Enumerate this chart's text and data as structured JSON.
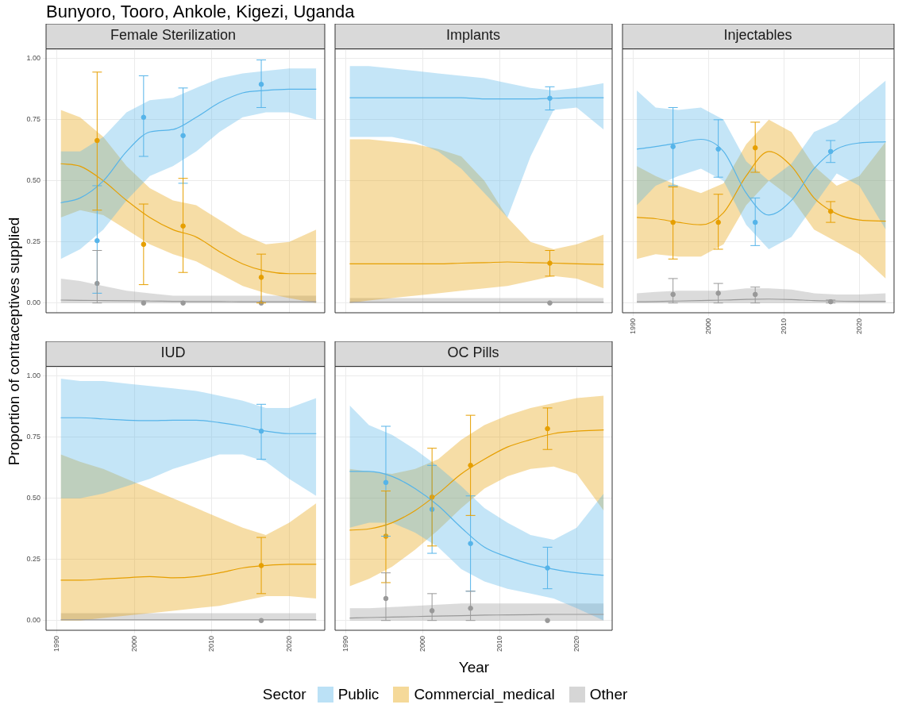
{
  "chart_data": [
    {
      "type": "line",
      "title": "Female Sterilization",
      "annotations": [
        "Bunyoro, Tooro, Ankole, Kigezi, Uganda"
      ],
      "ylabel": "Proportion of contraceptives supplied",
      "legend": "bottom",
      "legend_title": "Sector",
      "grid": true,
      "tick_labels": "y",
      "xlim": [
        1988.6,
        2024.6
      ],
      "xticks": [
        1990,
        2000,
        2010,
        2020
      ],
      "ylim": [
        -0.04,
        1.04
      ],
      "yticks": [
        {
          "value": 0,
          "label": "0.00"
        },
        {
          "value": 0.25,
          "label": "0.25"
        },
        {
          "value": 0.5,
          "label": "0.50"
        },
        {
          "value": 0.75,
          "label": "0.75"
        },
        {
          "value": 1,
          "label": "1.00"
        }
      ],
      "x": [
        1990.5,
        1993,
        1996,
        1999,
        2002,
        2005,
        2008,
        2011,
        2014,
        2017,
        2020,
        2023.5
      ],
      "series": [
        {
          "name": "Public",
          "color": "#56b4e9",
          "values": [
            0.41,
            0.43,
            0.5,
            0.62,
            0.7,
            0.71,
            0.76,
            0.82,
            0.86,
            0.87,
            0.875,
            0.875
          ],
          "lower": [
            0.18,
            0.22,
            0.3,
            0.42,
            0.52,
            0.56,
            0.62,
            0.7,
            0.76,
            0.78,
            0.78,
            0.75
          ],
          "upper": [
            0.62,
            0.62,
            0.68,
            0.78,
            0.83,
            0.84,
            0.88,
            0.92,
            0.94,
            0.95,
            0.96,
            0.96
          ]
        },
        {
          "name": "Commercial_medical",
          "color": "#e69f00",
          "values": [
            0.57,
            0.56,
            0.5,
            0.42,
            0.35,
            0.3,
            0.27,
            0.21,
            0.16,
            0.13,
            0.12,
            0.12
          ],
          "lower": [
            0.35,
            0.38,
            0.36,
            0.3,
            0.24,
            0.2,
            0.17,
            0.12,
            0.07,
            0.04,
            0.02,
            0
          ],
          "upper": [
            0.79,
            0.76,
            0.68,
            0.56,
            0.47,
            0.42,
            0.4,
            0.34,
            0.28,
            0.24,
            0.25,
            0.3
          ]
        },
        {
          "name": "Other",
          "color": "#999999",
          "values": [
            0.012,
            0.011,
            0.01,
            0.009,
            0.008,
            0.007,
            0.006,
            0.006,
            0.005,
            0.005,
            0.005,
            0.005
          ],
          "lower": [
            0,
            0,
            0,
            0,
            0,
            0,
            0,
            0,
            0,
            0,
            0,
            0
          ],
          "upper": [
            0.1,
            0.09,
            0.07,
            0.05,
            0.04,
            0.03,
            0.03,
            0.03,
            0.03,
            0.03,
            0.03,
            0.03
          ]
        },
        {
          "type": "scatter",
          "color": "#56b4e9",
          "x": [
            1995.2,
            2001.2,
            2006.3,
            2016.4
          ],
          "values": [
            0.255,
            0.76,
            0.685,
            0.895
          ],
          "errors": [
            [
              0.04,
              0.48
            ],
            [
              0.6,
              0.93
            ],
            [
              0.49,
              0.88
            ],
            [
              0.8,
              0.995
            ]
          ]
        },
        {
          "type": "scatter",
          "color": "#e69f00",
          "x": [
            1995.2,
            2001.2,
            2006.3,
            2016.4
          ],
          "values": [
            0.665,
            0.24,
            0.315,
            0.105
          ],
          "errors": [
            [
              0.38,
              0.945
            ],
            [
              0.075,
              0.405
            ],
            [
              0.125,
              0.51
            ],
            [
              0,
              0.2
            ]
          ]
        },
        {
          "type": "scatter",
          "color": "#999999",
          "x": [
            1995.2,
            2001.2,
            2006.3,
            2016.4
          ],
          "values": [
            0.08,
            0,
            0,
            0
          ],
          "errors": [
            [
              0,
              0.215
            ],
            null,
            null,
            null
          ]
        }
      ]
    },
    {
      "type": "line",
      "title": "Implants",
      "grid": true,
      "tick_labels": false,
      "xlim": [
        1988.6,
        2024.6
      ],
      "xticks": [
        1990,
        2000,
        2010,
        2020
      ],
      "ylim": [
        -0.04,
        1.04
      ],
      "yticks": [
        0,
        0.25,
        0.5,
        0.75,
        1
      ],
      "x": [
        1990.5,
        1993,
        1996,
        1999,
        2002,
        2005,
        2008,
        2011,
        2014,
        2017,
        2020,
        2023.5
      ],
      "series": [
        {
          "color": "#56b4e9",
          "values": [
            0.84,
            0.84,
            0.84,
            0.84,
            0.84,
            0.84,
            0.835,
            0.835,
            0.835,
            0.838,
            0.84,
            0.84
          ],
          "lower": [
            0.68,
            0.68,
            0.68,
            0.66,
            0.62,
            0.55,
            0.45,
            0.35,
            0.6,
            0.79,
            0.8,
            0.71
          ],
          "upper": [
            0.97,
            0.97,
            0.96,
            0.95,
            0.94,
            0.93,
            0.92,
            0.9,
            0.88,
            0.87,
            0.88,
            0.9
          ]
        },
        {
          "color": "#e69f00",
          "values": [
            0.16,
            0.16,
            0.16,
            0.16,
            0.16,
            0.163,
            0.165,
            0.168,
            0.165,
            0.163,
            0.16,
            0.158
          ],
          "lower": [
            0,
            0.01,
            0.02,
            0.03,
            0.04,
            0.05,
            0.06,
            0.07,
            0.09,
            0.11,
            0.1,
            0.06
          ],
          "upper": [
            0.67,
            0.67,
            0.66,
            0.65,
            0.63,
            0.6,
            0.5,
            0.35,
            0.25,
            0.22,
            0.24,
            0.28
          ]
        },
        {
          "color": "#999999",
          "values": [
            0.003,
            0.003,
            0.003,
            0.003,
            0.003,
            0.003,
            0.003,
            0.003,
            0.003,
            0.003,
            0.003,
            0.003
          ],
          "lower": [
            0,
            0,
            0,
            0,
            0,
            0,
            0,
            0,
            0,
            0,
            0,
            0
          ],
          "upper": [
            0.02,
            0.02,
            0.02,
            0.02,
            0.02,
            0.02,
            0.02,
            0.02,
            0.02,
            0.02,
            0.02,
            0.02
          ]
        },
        {
          "type": "scatter",
          "color": "#56b4e9",
          "x": [
            2016.5
          ],
          "values": [
            0.838
          ],
          "errors": [
            [
              0.79,
              0.885
            ]
          ]
        },
        {
          "type": "scatter",
          "color": "#e69f00",
          "x": [
            2016.5
          ],
          "values": [
            0.163
          ],
          "errors": [
            [
              0.11,
              0.215
            ]
          ]
        },
        {
          "type": "scatter",
          "color": "#999999",
          "x": [
            2016.5
          ],
          "values": [
            0
          ],
          "errors": [
            null
          ]
        }
      ]
    },
    {
      "type": "line",
      "title": "Injectables",
      "grid": true,
      "tick_labels": "x",
      "xlim": [
        1988.6,
        2024.6
      ],
      "xticks": [
        1990,
        2000,
        2010,
        2020
      ],
      "ylim": [
        -0.04,
        1.04
      ],
      "yticks": [
        0,
        0.25,
        0.5,
        0.75,
        1
      ],
      "x": [
        1990.5,
        1993,
        1996,
        1999,
        2002,
        2005,
        2008,
        2011,
        2014,
        2017,
        2020,
        2023.5
      ],
      "series": [
        {
          "color": "#56b4e9",
          "values": [
            0.63,
            0.64,
            0.655,
            0.67,
            0.62,
            0.45,
            0.36,
            0.42,
            0.55,
            0.63,
            0.655,
            0.66
          ],
          "lower": [
            0.4,
            0.48,
            0.52,
            0.55,
            0.5,
            0.32,
            0.22,
            0.27,
            0.4,
            0.53,
            0.48,
            0.3
          ],
          "upper": [
            0.87,
            0.8,
            0.79,
            0.8,
            0.75,
            0.58,
            0.5,
            0.57,
            0.7,
            0.74,
            0.82,
            0.91
          ]
        },
        {
          "color": "#e69f00",
          "values": [
            0.35,
            0.345,
            0.33,
            0.32,
            0.37,
            0.52,
            0.62,
            0.56,
            0.43,
            0.365,
            0.34,
            0.335
          ],
          "lower": [
            0.18,
            0.2,
            0.19,
            0.19,
            0.24,
            0.4,
            0.5,
            0.43,
            0.3,
            0.25,
            0.2,
            0.1
          ],
          "upper": [
            0.56,
            0.52,
            0.48,
            0.45,
            0.49,
            0.65,
            0.75,
            0.7,
            0.56,
            0.48,
            0.52,
            0.66
          ]
        },
        {
          "color": "#999999",
          "values": [
            0.005,
            0.006,
            0.008,
            0.01,
            0.012,
            0.015,
            0.016,
            0.014,
            0.01,
            0.008,
            0.007,
            0.007
          ],
          "lower": [
            0,
            0,
            0,
            0,
            0,
            0,
            0,
            0,
            0,
            0,
            0,
            0
          ],
          "upper": [
            0.04,
            0.045,
            0.05,
            0.05,
            0.05,
            0.06,
            0.06,
            0.055,
            0.04,
            0.035,
            0.035,
            0.04
          ]
        },
        {
          "type": "scatter",
          "color": "#56b4e9",
          "x": [
            1995.3,
            2001.3,
            2006.2,
            2016.2
          ],
          "values": [
            0.64,
            0.63,
            0.33,
            0.62
          ],
          "errors": [
            [
              0.48,
              0.8
            ],
            [
              0.515,
              0.75
            ],
            [
              0.235,
              0.43
            ],
            [
              0.575,
              0.665
            ]
          ]
        },
        {
          "type": "scatter",
          "color": "#e69f00",
          "x": [
            1995.3,
            2001.3,
            2006.2,
            2016.2
          ],
          "values": [
            0.33,
            0.33,
            0.635,
            0.375
          ],
          "errors": [
            [
              0.18,
              0.475
            ],
            [
              0.22,
              0.445
            ],
            [
              0.535,
              0.74
            ],
            [
              0.33,
              0.415
            ]
          ]
        },
        {
          "type": "scatter",
          "color": "#999999",
          "x": [
            1995.3,
            2001.3,
            2006.2,
            2016.2
          ],
          "values": [
            0.035,
            0.04,
            0.035,
            0.005
          ],
          "errors": [
            [
              0,
              0.1
            ],
            [
              0,
              0.08
            ],
            [
              0,
              0.065
            ],
            [
              0,
              0.012
            ]
          ]
        }
      ]
    },
    {
      "type": "line",
      "title": "IUD",
      "grid": true,
      "xlim": [
        1988.6,
        2024.6
      ],
      "xticks": [
        1990,
        2000,
        2010,
        2020
      ],
      "ylim": [
        -0.04,
        1.04
      ],
      "yticks": [
        {
          "value": 0,
          "label": "0.00"
        },
        {
          "value": 0.25,
          "label": "0.25"
        },
        {
          "value": 0.5,
          "label": "0.50"
        },
        {
          "value": 0.75,
          "label": "0.75"
        },
        {
          "value": 1,
          "label": "1.00"
        }
      ],
      "x": [
        1990.5,
        1993,
        1996,
        1999,
        2002,
        2005,
        2008,
        2011,
        2014,
        2017,
        2020,
        2023.5
      ],
      "series": [
        {
          "color": "#56b4e9",
          "values": [
            0.83,
            0.83,
            0.825,
            0.82,
            0.818,
            0.82,
            0.82,
            0.81,
            0.795,
            0.775,
            0.765,
            0.765
          ],
          "lower": [
            0.5,
            0.5,
            0.52,
            0.55,
            0.58,
            0.62,
            0.65,
            0.68,
            0.68,
            0.65,
            0.58,
            0.51
          ],
          "upper": [
            0.99,
            0.98,
            0.98,
            0.97,
            0.96,
            0.95,
            0.94,
            0.92,
            0.9,
            0.87,
            0.87,
            0.91
          ]
        },
        {
          "color": "#e69f00",
          "values": [
            0.165,
            0.165,
            0.17,
            0.175,
            0.18,
            0.175,
            0.18,
            0.195,
            0.215,
            0.225,
            0.23,
            0.23
          ],
          "lower": [
            0,
            0,
            0.01,
            0.02,
            0.03,
            0.04,
            0.05,
            0.06,
            0.08,
            0.1,
            0.1,
            0.09
          ],
          "upper": [
            0.68,
            0.65,
            0.62,
            0.58,
            0.54,
            0.5,
            0.46,
            0.42,
            0.38,
            0.35,
            0.4,
            0.48
          ]
        },
        {
          "color": "#999999",
          "values": [
            0.003,
            0.003,
            0.003,
            0.003,
            0.003,
            0.003,
            0.003,
            0.003,
            0.003,
            0.003,
            0.003,
            0.003
          ],
          "lower": [
            0,
            0,
            0,
            0,
            0,
            0,
            0,
            0,
            0,
            0,
            0,
            0
          ],
          "upper": [
            0.03,
            0.03,
            0.03,
            0.03,
            0.03,
            0.03,
            0.03,
            0.03,
            0.03,
            0.03,
            0.03,
            0.03
          ]
        },
        {
          "type": "scatter",
          "color": "#56b4e9",
          "x": [
            2016.4
          ],
          "values": [
            0.775
          ],
          "errors": [
            [
              0.66,
              0.885
            ]
          ]
        },
        {
          "type": "scatter",
          "color": "#e69f00",
          "x": [
            2016.4
          ],
          "values": [
            0.225
          ],
          "errors": [
            [
              0.11,
              0.34
            ]
          ]
        },
        {
          "type": "scatter",
          "color": "#999999",
          "x": [
            2016.4
          ],
          "values": [
            0
          ],
          "errors": [
            null
          ]
        }
      ]
    },
    {
      "type": "line",
      "title": "OC Pills",
      "xlabel": "Year",
      "grid": true,
      "tick_labels": "x",
      "xlim": [
        1988.6,
        2024.6
      ],
      "xticks": [
        1990,
        2000,
        2010,
        2020
      ],
      "ylim": [
        -0.04,
        1.04
      ],
      "yticks": [
        0,
        0.25,
        0.5,
        0.75,
        1
      ],
      "x": [
        1990.5,
        1993,
        1996,
        1999,
        2002,
        2005,
        2008,
        2011,
        2014,
        2017,
        2020,
        2023.5
      ],
      "series": [
        {
          "color": "#56b4e9",
          "values": [
            0.61,
            0.61,
            0.59,
            0.54,
            0.47,
            0.38,
            0.3,
            0.26,
            0.23,
            0.21,
            0.195,
            0.185
          ],
          "lower": [
            0.38,
            0.4,
            0.4,
            0.36,
            0.3,
            0.21,
            0.16,
            0.13,
            0.11,
            0.09,
            0.05,
            0
          ],
          "upper": [
            0.88,
            0.8,
            0.76,
            0.7,
            0.63,
            0.55,
            0.46,
            0.4,
            0.35,
            0.33,
            0.38,
            0.52
          ]
        },
        {
          "color": "#e69f00",
          "values": [
            0.37,
            0.375,
            0.4,
            0.45,
            0.52,
            0.6,
            0.66,
            0.71,
            0.74,
            0.765,
            0.775,
            0.78
          ],
          "lower": [
            0.14,
            0.17,
            0.22,
            0.29,
            0.37,
            0.46,
            0.54,
            0.59,
            0.62,
            0.63,
            0.6,
            0.45
          ],
          "upper": [
            0.62,
            0.61,
            0.6,
            0.62,
            0.66,
            0.74,
            0.8,
            0.84,
            0.87,
            0.89,
            0.91,
            0.92
          ]
        },
        {
          "color": "#999999",
          "values": [
            0.01,
            0.012,
            0.014,
            0.016,
            0.018,
            0.02,
            0.022,
            0.023,
            0.024,
            0.025,
            0.025,
            0.025
          ],
          "lower": [
            0,
            0,
            0,
            0,
            0,
            0,
            0,
            0,
            0,
            0,
            0,
            0
          ],
          "upper": [
            0.05,
            0.05,
            0.055,
            0.06,
            0.065,
            0.07,
            0.07,
            0.07,
            0.07,
            0.07,
            0.07,
            0.07
          ]
        },
        {
          "type": "scatter",
          "color": "#56b4e9",
          "x": [
            1995.2,
            2001.2,
            2006.2,
            2016.2
          ],
          "values": [
            0.565,
            0.455,
            0.315,
            0.215
          ],
          "errors": [
            [
              0.345,
              0.795
            ],
            [
              0.275,
              0.635
            ],
            [
              0.12,
              0.51
            ],
            [
              0.13,
              0.3
            ]
          ]
        },
        {
          "type": "scatter",
          "color": "#e69f00",
          "x": [
            1995.2,
            2001.2,
            2006.2,
            2016.2
          ],
          "values": [
            0.345,
            0.505,
            0.635,
            0.785
          ],
          "errors": [
            [
              0.155,
              0.53
            ],
            [
              0.305,
              0.705
            ],
            [
              0.43,
              0.84
            ],
            [
              0.7,
              0.87
            ]
          ]
        },
        {
          "type": "scatter",
          "color": "#999999",
          "x": [
            1995.2,
            2001.2,
            2006.2,
            2016.2
          ],
          "values": [
            0.09,
            0.04,
            0.05,
            0
          ],
          "errors": [
            [
              0,
              0.195
            ],
            [
              0,
              0.11
            ],
            [
              0,
              0.12
            ],
            null
          ]
        }
      ]
    }
  ]
}
